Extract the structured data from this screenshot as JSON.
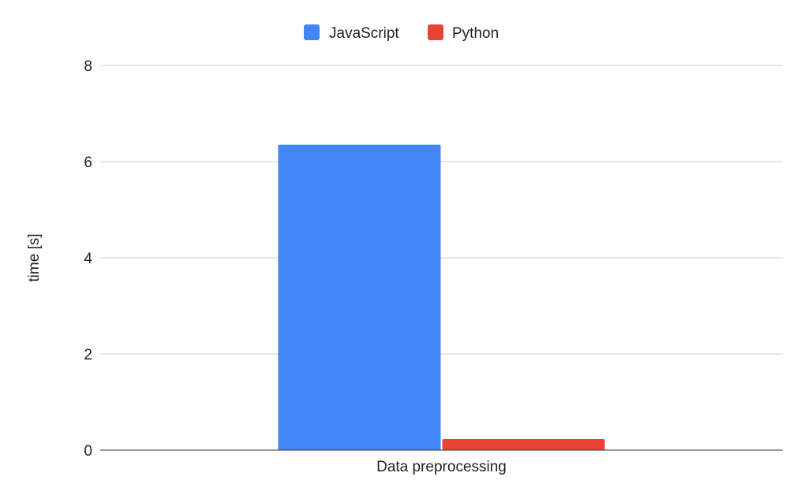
{
  "chart_data": {
    "type": "bar",
    "categories": [
      "Data preprocessing"
    ],
    "series": [
      {
        "name": "JavaScript",
        "values": [
          6.35
        ],
        "color": "#4285F4"
      },
      {
        "name": "Python",
        "values": [
          0.23
        ],
        "color": "#EA4335"
      }
    ],
    "ylabel": "time [s]",
    "xlabel": "",
    "ylim": [
      0,
      8
    ],
    "yticks": [
      "0",
      "2",
      "4",
      "6",
      "8"
    ],
    "grid": true,
    "legend_position": "top-center"
  }
}
